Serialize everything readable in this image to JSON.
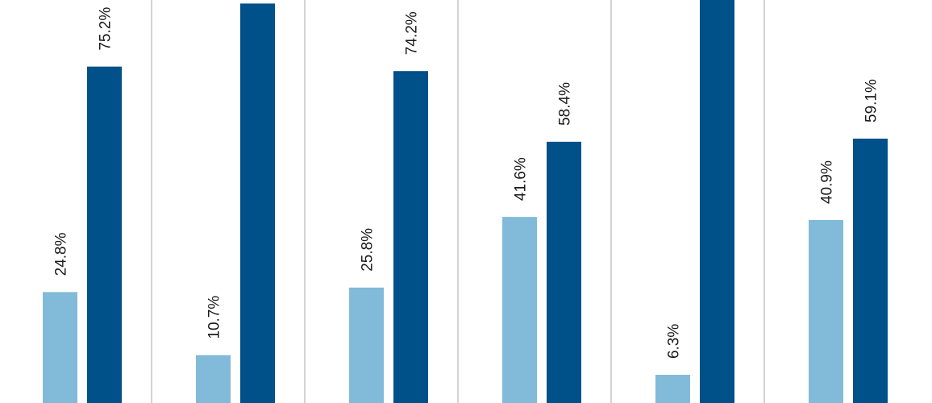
{
  "chart_data": {
    "type": "bar",
    "categories": [
      "",
      "",
      "",
      "",
      "",
      ""
    ],
    "series": [
      {
        "values": [
          24.8,
          10.7,
          25.8,
          41.6,
          6.3,
          40.9
        ],
        "labels": [
          "24.8%",
          "10.7%",
          "25.8%",
          "41.6%",
          "6.3%",
          "40.9%"
        ]
      },
      {
        "values": [
          75.2,
          89.3,
          74.2,
          58.4,
          93.7,
          59.1
        ],
        "labels": [
          "75.2%",
          "",
          "74.2%",
          "58.4%",
          "",
          "59.1%"
        ]
      }
    ],
    "ylim": [
      0,
      100
    ],
    "colors": [
      "#82bad9",
      "#005089"
    ],
    "gridlines": "vertical",
    "gridline_color": "#d3d3d3",
    "title": "",
    "xlabel": "",
    "ylabel": ""
  }
}
